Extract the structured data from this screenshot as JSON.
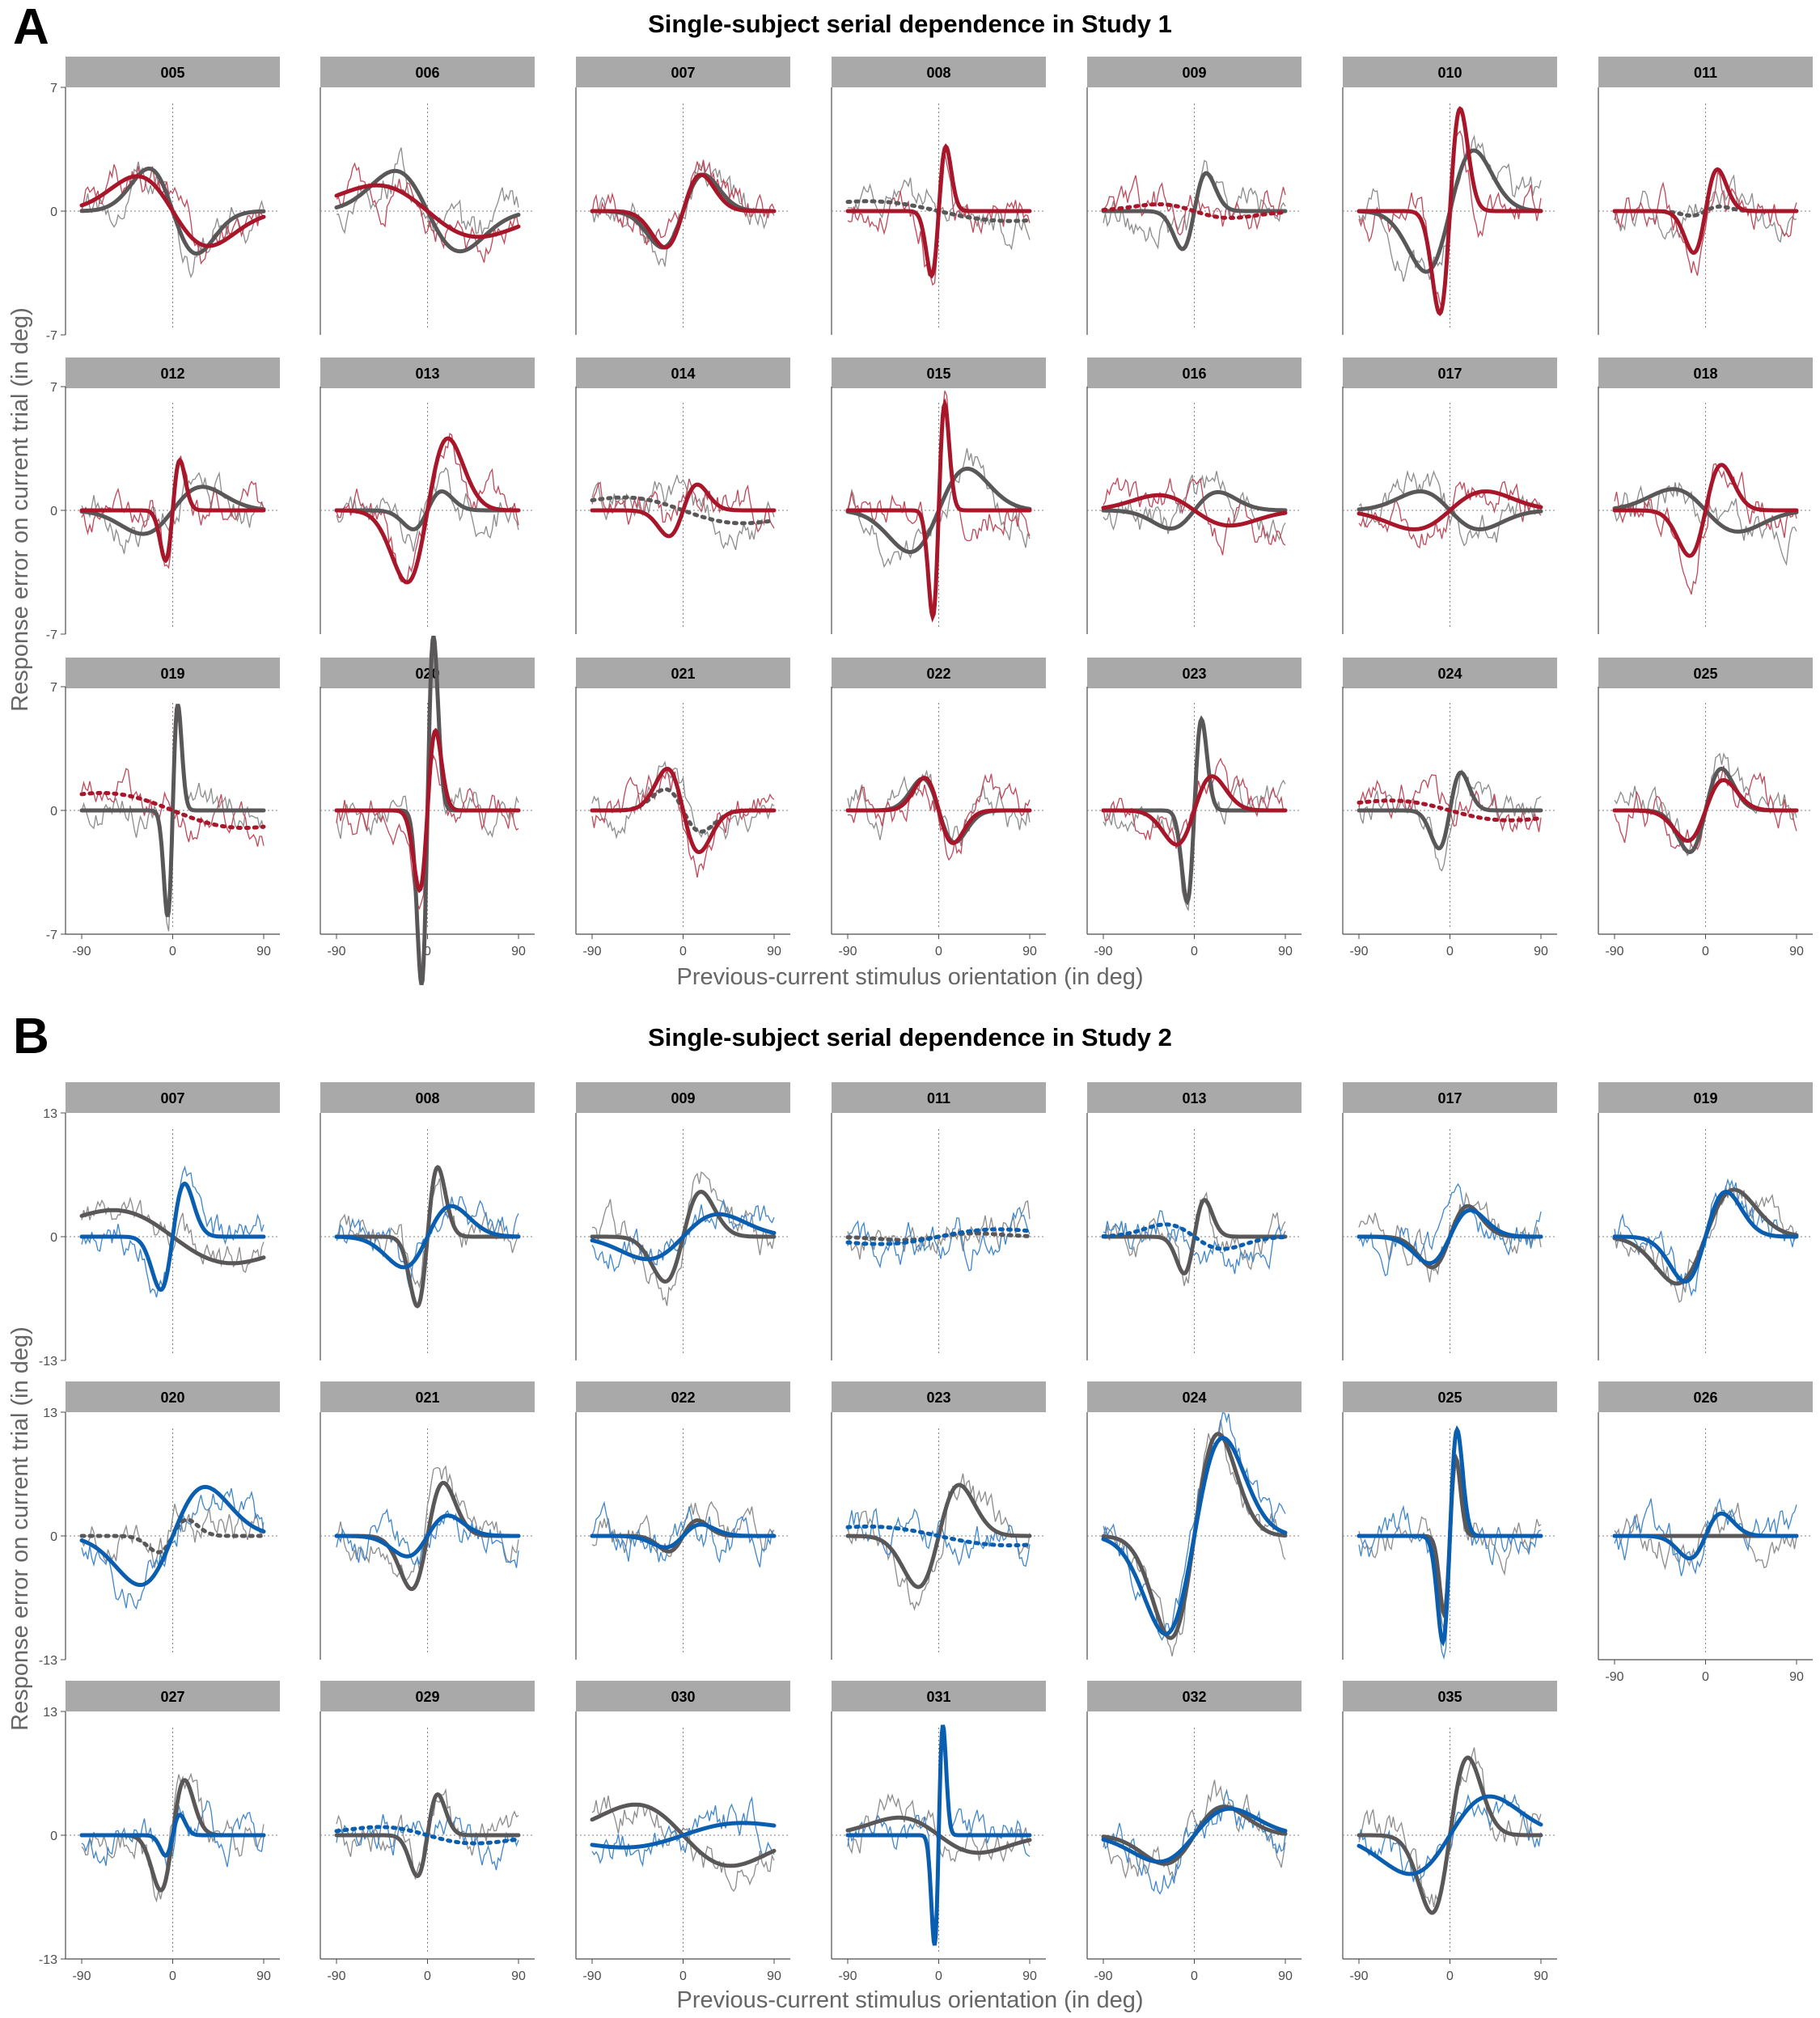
{
  "figure": {
    "panels": [
      {
        "letter": "A",
        "title": "Single-subject serial dependence in Study 1",
        "xlabel": "Previous-current stimulus orientation (in deg)",
        "ylabel": "Response error on current trial (in deg)",
        "accent": "#a8162a",
        "accent_raw": "#c0485a",
        "model_color": "#5a5758",
        "raw_gray": "#8c8c8c",
        "ylim": [
          -7,
          7
        ],
        "y_ticks": [
          "7",
          "0",
          "-7"
        ]
      },
      {
        "letter": "B",
        "title": "Single-subject serial dependence in Study 2",
        "xlabel": "Previous-current stimulus orientation (in deg)",
        "ylabel": "Response error on current trial (in deg)",
        "accent": "#0a5eb0",
        "accent_raw": "#3f86cc",
        "model_color": "#5a5758",
        "raw_gray": "#8c8c8c",
        "ylim": [
          -13,
          13
        ],
        "y_ticks": [
          "13",
          "0",
          "-13"
        ]
      }
    ],
    "x_ticks": [
      "-90",
      "0",
      "90"
    ],
    "strip_color": "#a9a9a9"
  },
  "chart_data": [
    {
      "type": "line",
      "title": "Single-subject serial dependence in Study 1",
      "xlabel": "Previous-current stimulus orientation (in deg)",
      "ylabel": "Response error on current trial (in deg)",
      "xlim": [
        -90,
        90
      ],
      "ylim": [
        -7,
        7
      ],
      "facets": [
        {
          "id": "005",
          "colored": {
            "a": -4.6,
            "w": 0.02,
            "style": "solid"
          },
          "gray": {
            "a": -5.6,
            "w": 0.03,
            "style": "solid"
          }
        },
        {
          "id": "006",
          "colored": {
            "a": -3.4,
            "w": 0.014,
            "style": "solid"
          },
          "gray": {
            "a": -5.3,
            "w": 0.022,
            "style": "solid"
          }
        },
        {
          "id": "007",
          "colored": {
            "a": 4.8,
            "w": 0.04,
            "style": "solid"
          },
          "gray": {
            "a": 4.8,
            "w": 0.035,
            "style": "solid"
          }
        },
        {
          "id": "008",
          "colored": {
            "a": 8.5,
            "w": 0.1,
            "style": "solid"
          },
          "gray": {
            "a": -1.3,
            "w": 0.01,
            "style": "dotted"
          }
        },
        {
          "id": "009",
          "colored": {
            "a": -0.9,
            "w": 0.02,
            "style": "dotted"
          },
          "gray": {
            "a": 5.0,
            "w": 0.06,
            "style": "solid"
          }
        },
        {
          "id": "010",
          "colored": {
            "a": 13.5,
            "w": 0.07,
            "style": "solid"
          },
          "gray": {
            "a": 8.0,
            "w": 0.03,
            "style": "solid"
          }
        },
        {
          "id": "011",
          "colored": {
            "a": 5.5,
            "w": 0.06,
            "style": "solid"
          },
          "gray": {
            "a": 0.6,
            "w": 0.05,
            "style": "dotted"
          }
        },
        {
          "id": "012",
          "colored": {
            "a": 6.6,
            "w": 0.1,
            "style": "solid"
          },
          "gray": {
            "a": 3.1,
            "w": 0.024,
            "style": "solid"
          }
        },
        {
          "id": "013",
          "colored": {
            "a": 9.5,
            "w": 0.035,
            "style": "solid"
          },
          "gray": {
            "a": 2.5,
            "w": 0.05,
            "style": "solid"
          }
        },
        {
          "id": "014",
          "colored": {
            "a": 3.4,
            "w": 0.05,
            "style": "solid"
          },
          "gray": {
            "a": -1.7,
            "w": 0.012,
            "style": "dotted"
          }
        },
        {
          "id": "015",
          "colored": {
            "a": 14.0,
            "w": 0.12,
            "style": "solid"
          },
          "gray": {
            "a": 5.5,
            "w": 0.025,
            "style": "solid"
          }
        },
        {
          "id": "016",
          "colored": {
            "a": -2.0,
            "w": 0.02,
            "style": "solid"
          },
          "gray": {
            "a": 2.4,
            "w": 0.03,
            "style": "solid"
          }
        },
        {
          "id": "017",
          "colored": {
            "a": 2.5,
            "w": 0.02,
            "style": "solid"
          },
          "gray": {
            "a": -2.5,
            "w": 0.024,
            "style": "solid"
          }
        },
        {
          "id": "018",
          "colored": {
            "a": 6.0,
            "w": 0.045,
            "style": "solid"
          },
          "gray": {
            "a": -2.8,
            "w": 0.022,
            "style": "solid"
          }
        },
        {
          "id": "019",
          "colored": {
            "a": -2.3,
            "w": 0.01,
            "style": "dotted"
          },
          "gray": {
            "a": 14.0,
            "w": 0.14,
            "style": "solid"
          }
        },
        {
          "id": "020",
          "colored": {
            "a": 10.5,
            "w": 0.09,
            "style": "solid"
          },
          "gray": {
            "a": 23.0,
            "w": 0.12,
            "style": "solid"
          }
        },
        {
          "id": "021",
          "colored": {
            "a": -5.5,
            "w": 0.045,
            "style": "solid"
          },
          "gray": {
            "a": -2.8,
            "w": 0.04,
            "style": "dotted"
          }
        },
        {
          "id": "022",
          "colored": {
            "a": -4.3,
            "w": 0.05,
            "style": "solid"
          },
          "gray": {
            "a": -4.2,
            "w": 0.045,
            "style": "solid"
          }
        },
        {
          "id": "023",
          "colored": {
            "a": 4.5,
            "w": 0.04,
            "style": "solid"
          },
          "gray": {
            "a": 12.0,
            "w": 0.1,
            "style": "solid"
          }
        },
        {
          "id": "024",
          "colored": {
            "a": -1.3,
            "w": 0.012,
            "style": "dotted"
          },
          "gray": {
            "a": 5.0,
            "w": 0.065,
            "style": "solid"
          }
        },
        {
          "id": "025",
          "colored": {
            "a": 4.0,
            "w": 0.04,
            "style": "solid"
          },
          "gray": {
            "a": 5.5,
            "w": 0.045,
            "style": "solid"
          }
        }
      ]
    },
    {
      "type": "line",
      "title": "Single-subject serial dependence in Study 2",
      "xlabel": "Previous-current stimulus orientation (in deg)",
      "ylabel": "Response error on current trial (in deg)",
      "xlim": [
        -90,
        90
      ],
      "ylim": [
        -13,
        13
      ],
      "facets": [
        {
          "id": "007",
          "colored": {
            "a": 13.0,
            "w": 0.06,
            "style": "solid"
          },
          "gray": {
            "a": -6.5,
            "w": 0.012,
            "style": "solid"
          }
        },
        {
          "id": "008",
          "colored": {
            "a": 7.5,
            "w": 0.03,
            "style": "solid"
          },
          "gray": {
            "a": 17.0,
            "w": 0.07,
            "style": "solid"
          }
        },
        {
          "id": "009",
          "colored": {
            "a": 5.5,
            "w": 0.02,
            "style": "solid"
          },
          "gray": {
            "a": 11.0,
            "w": 0.04,
            "style": "solid"
          }
        },
        {
          "id": "011",
          "colored": {
            "a": 1.8,
            "w": 0.012,
            "style": "dotted"
          },
          "gray": {
            "a": 0.8,
            "w": 0.02,
            "style": "dotted"
          }
        },
        {
          "id": "013",
          "colored": {
            "a": -3.0,
            "w": 0.025,
            "style": "dotted"
          },
          "gray": {
            "a": 9.0,
            "w": 0.07,
            "style": "solid"
          }
        },
        {
          "id": "017",
          "colored": {
            "a": 6.5,
            "w": 0.035,
            "style": "solid"
          },
          "gray": {
            "a": 7.5,
            "w": 0.04,
            "style": "solid"
          }
        },
        {
          "id": "019",
          "colored": {
            "a": 11.0,
            "w": 0.035,
            "style": "solid"
          },
          "gray": {
            "a": 11.5,
            "w": 0.025,
            "style": "solid"
          }
        },
        {
          "id": "020",
          "colored": {
            "a": 12.0,
            "w": 0.022,
            "style": "solid"
          },
          "gray": {
            "a": 4.0,
            "w": 0.05,
            "style": "dotted"
          }
        },
        {
          "id": "021",
          "colored": {
            "a": 5.0,
            "w": 0.035,
            "style": "solid"
          },
          "gray": {
            "a": 13.0,
            "w": 0.045,
            "style": "solid"
          }
        },
        {
          "id": "022",
          "colored": {
            "a": 2.8,
            "w": 0.04,
            "style": "solid"
          },
          "gray": {
            "a": 3.8,
            "w": 0.05,
            "style": "solid"
          }
        },
        {
          "id": "023",
          "colored": {
            "a": -2.3,
            "w": 0.01,
            "style": "dotted"
          },
          "gray": {
            "a": 12.5,
            "w": 0.035,
            "style": "solid"
          }
        },
        {
          "id": "024",
          "colored": {
            "a": 24.0,
            "w": 0.025,
            "style": "solid"
          },
          "gray": {
            "a": 25.0,
            "w": 0.03,
            "style": "solid"
          }
        },
        {
          "id": "025",
          "colored": {
            "a": 26.0,
            "w": 0.1,
            "style": "solid"
          },
          "gray": {
            "a": 19.0,
            "w": 0.12,
            "style": "solid"
          }
        },
        {
          "id": "026",
          "colored": {
            "a": 5.5,
            "w": 0.045,
            "style": "solid"
          },
          "gray": {
            "a": 0,
            "w": 0.04,
            "style": "solid"
          }
        },
        {
          "id": "027",
          "colored": {
            "a": 5.0,
            "w": 0.1,
            "style": "solid"
          },
          "gray": {
            "a": 13.5,
            "w": 0.06,
            "style": "solid"
          }
        },
        {
          "id": "029",
          "colored": {
            "a": -2.0,
            "w": 0.015,
            "style": "dotted"
          },
          "gray": {
            "a": 10.0,
            "w": 0.07,
            "style": "solid"
          }
        },
        {
          "id": "030",
          "colored": {
            "a": 3.0,
            "w": 0.012,
            "style": "solid"
          },
          "gray": {
            "a": -7.5,
            "w": 0.015,
            "style": "solid"
          }
        },
        {
          "id": "031",
          "colored": {
            "a": 27.0,
            "w": 0.17,
            "style": "solid"
          },
          "gray": {
            "a": -4.3,
            "w": 0.018,
            "style": "solid"
          }
        },
        {
          "id": "032",
          "colored": {
            "a": 6.5,
            "w": 0.02,
            "style": "solid"
          },
          "gray": {
            "a": 7.0,
            "w": 0.024,
            "style": "solid"
          }
        },
        {
          "id": "035",
          "colored": {
            "a": 9.5,
            "w": 0.018,
            "style": "solid"
          },
          "gray": {
            "a": 19.0,
            "w": 0.04,
            "style": "solid"
          }
        }
      ]
    }
  ]
}
